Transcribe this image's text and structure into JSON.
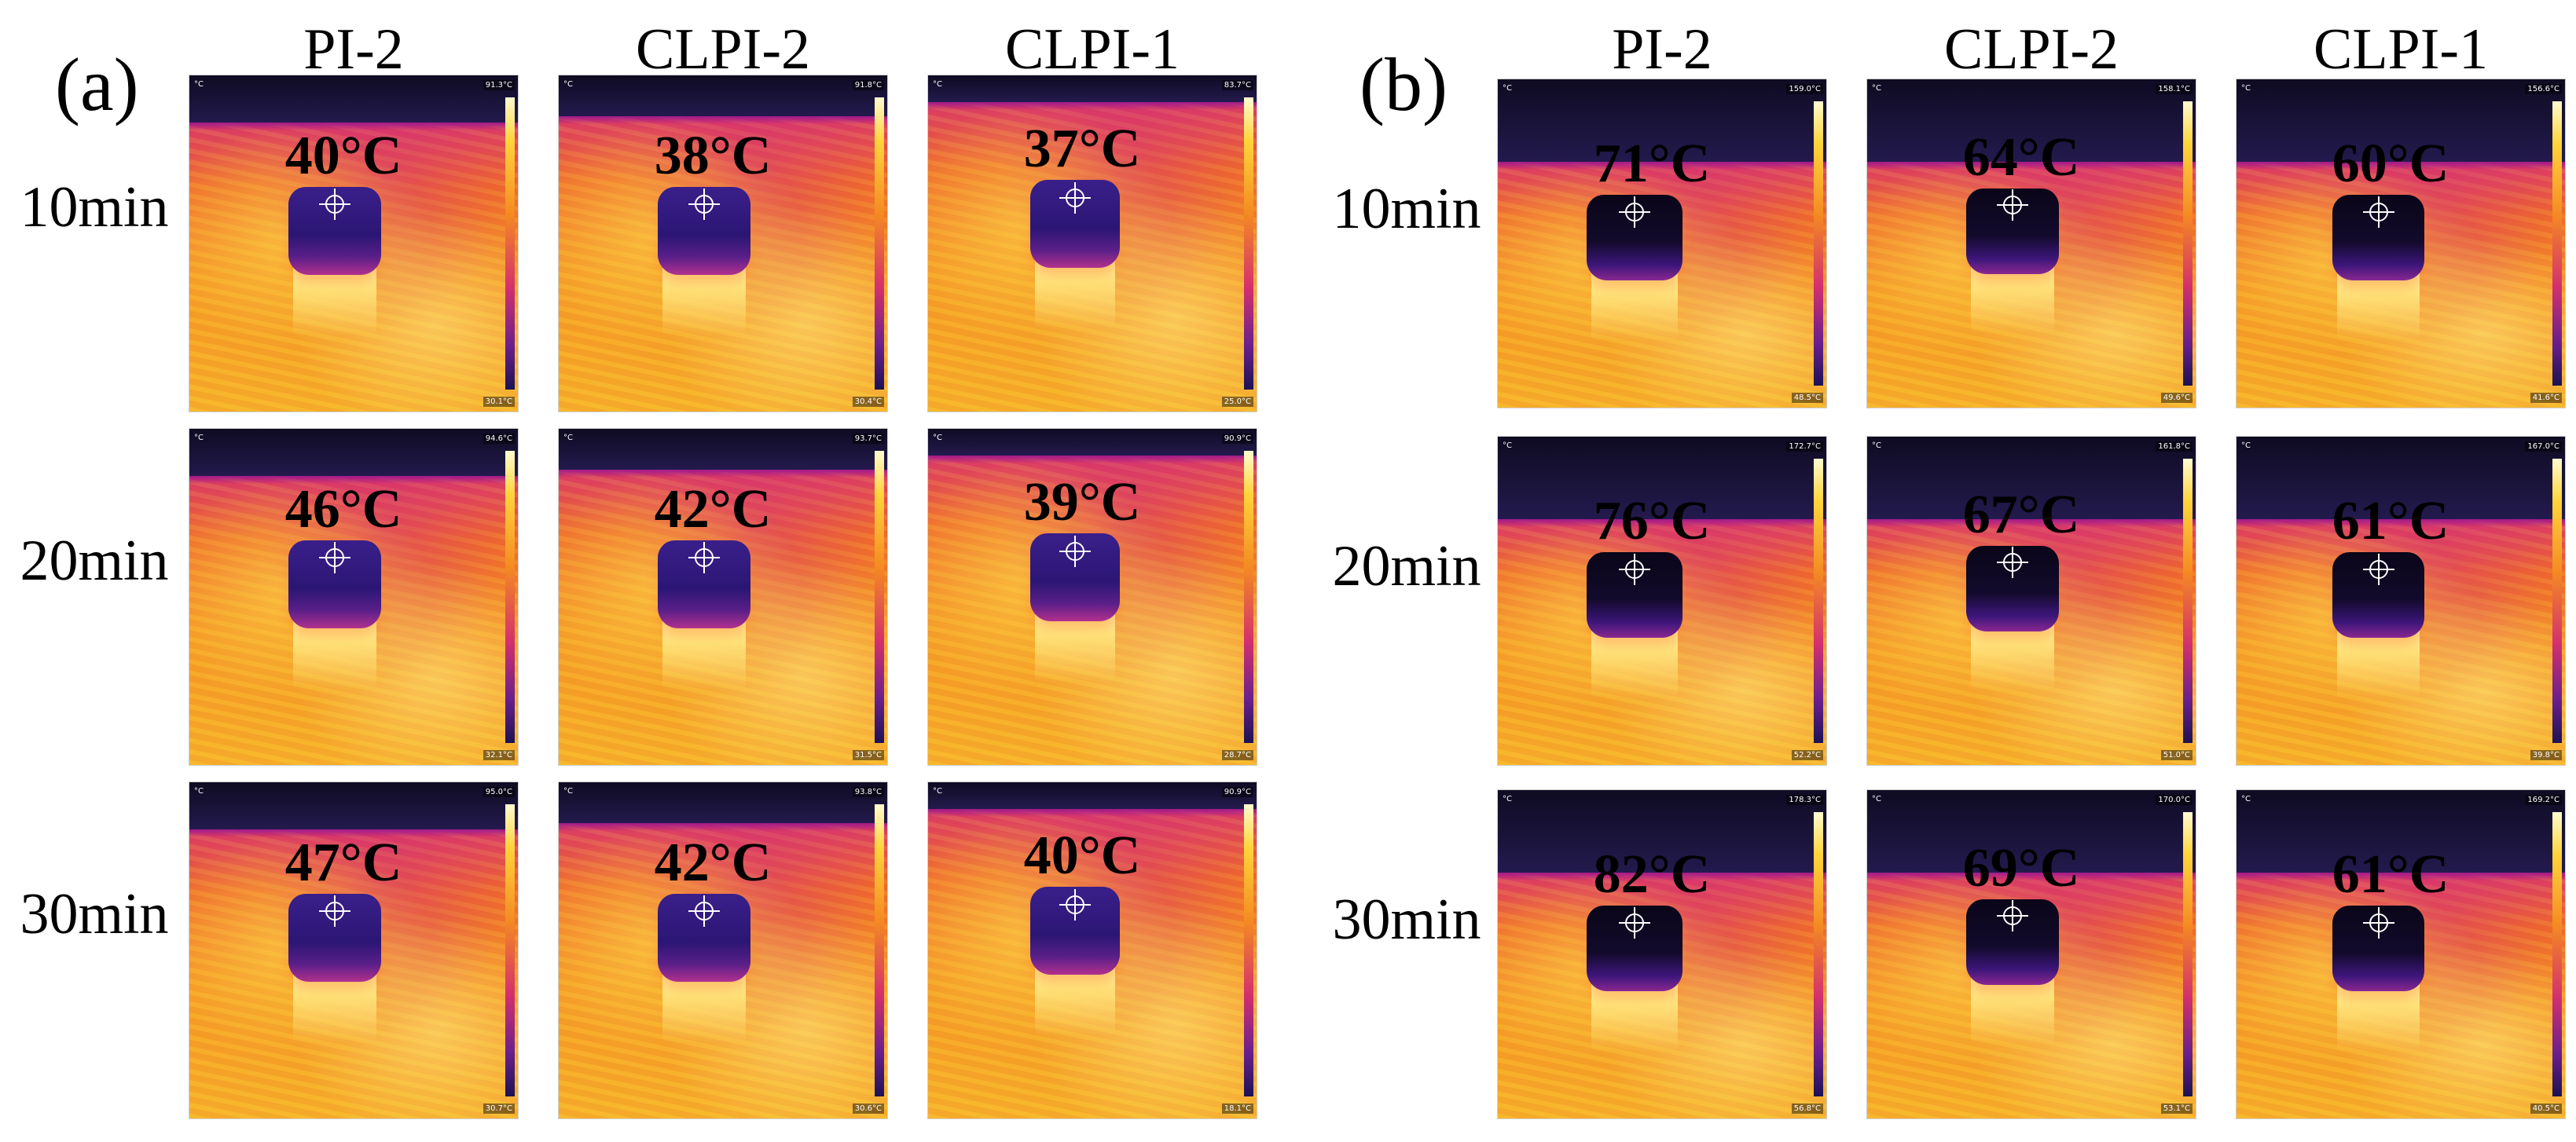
{
  "panels": [
    {
      "letter": "(a)",
      "columns": [
        "PI-2",
        "CLPI-2",
        "CLPI-1"
      ],
      "rows": [
        "10min",
        "20min",
        "30min"
      ],
      "images": [
        [
          {
            "temp": "40°C",
            "max": "91.3°C",
            "min": "30.1°C"
          },
          {
            "temp": "38°C",
            "max": "91.8°C",
            "min": "30.4°C"
          },
          {
            "temp": "37°C",
            "max": "83.7°C",
            "min": "25.0°C"
          }
        ],
        [
          {
            "temp": "46°C",
            "max": "94.6°C",
            "min": "32.1°C"
          },
          {
            "temp": "42°C",
            "max": "93.7°C",
            "min": "31.5°C"
          },
          {
            "temp": "39°C",
            "max": "90.9°C",
            "min": "28.7°C"
          }
        ],
        [
          {
            "temp": "47°C",
            "max": "95.0°C",
            "min": "30.7°C"
          },
          {
            "temp": "42°C",
            "max": "93.8°C",
            "min": "30.6°C"
          },
          {
            "temp": "40°C",
            "max": "90.9°C",
            "min": "18.1°C"
          }
        ]
      ]
    },
    {
      "letter": "(b)",
      "columns": [
        "PI-2",
        "CLPI-2",
        "CLPI-1"
      ],
      "rows": [
        "10min",
        "20min",
        "30min"
      ],
      "images": [
        [
          {
            "temp": "71°C",
            "max": "159.0°C",
            "min": "48.5°C"
          },
          {
            "temp": "64°C",
            "max": "158.1°C",
            "min": "49.6°C"
          },
          {
            "temp": "60°C",
            "max": "156.6°C",
            "min": "41.6°C"
          }
        ],
        [
          {
            "temp": "76°C",
            "max": "172.7°C",
            "min": "52.2°C"
          },
          {
            "temp": "67°C",
            "max": "161.8°C",
            "min": "51.0°C"
          },
          {
            "temp": "61°C",
            "max": "167.0°C",
            "min": "39.8°C"
          }
        ],
        [
          {
            "temp": "82°C",
            "max": "178.3°C",
            "min": "56.8°C"
          },
          {
            "temp": "69°C",
            "max": "170.0°C",
            "min": "53.1°C"
          },
          {
            "temp": "61°C",
            "max": "169.2°C",
            "min": "40.5°C"
          }
        ]
      ]
    }
  ],
  "unit_symbol": "°C",
  "colors": {
    "background": "#ffffff",
    "hot": "#f7b52a",
    "warm": "#ef6a2c",
    "cool": "#d8346f",
    "cold": "#2b1674"
  }
}
